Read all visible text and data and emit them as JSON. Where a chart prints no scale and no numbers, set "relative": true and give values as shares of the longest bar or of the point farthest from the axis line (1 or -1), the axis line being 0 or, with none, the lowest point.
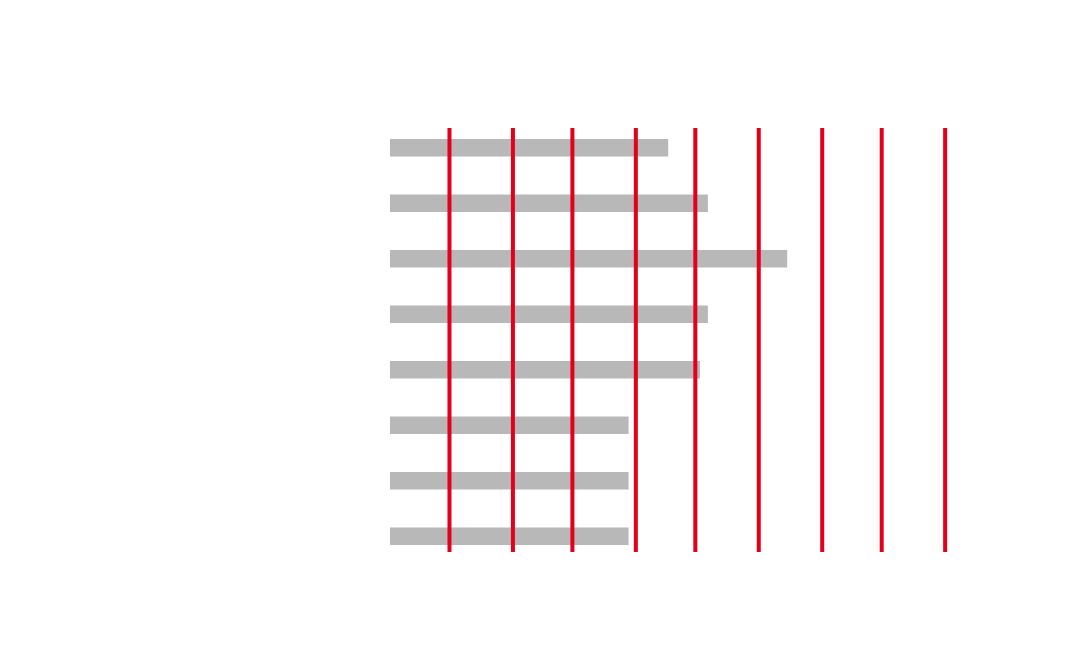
{
  "chart_data": {
    "type": "bar",
    "orientation": "horizontal",
    "relative": true,
    "categories": [
      null,
      null,
      null,
      null,
      null,
      null,
      null,
      null
    ],
    "values": [
      0.7,
      0.8,
      1,
      0.8,
      0.78,
      0.6,
      0.6,
      0.6
    ],
    "color": "#b8b8b8",
    "ref_lines": [
      {
        "axis": "x",
        "value": 0.15,
        "color": "#e2001a"
      },
      {
        "axis": "x",
        "value": 0.31,
        "color": "#e2001a"
      },
      {
        "axis": "x",
        "value": 0.46,
        "color": "#e2001a"
      },
      {
        "axis": "x",
        "value": 0.62,
        "color": "#e2001a"
      },
      {
        "axis": "x",
        "value": 0.77,
        "color": "#e2001a"
      },
      {
        "axis": "x",
        "value": 0.93,
        "color": "#e2001a"
      },
      {
        "axis": "x",
        "value": 1.09,
        "color": "#e2001a"
      },
      {
        "axis": "x",
        "value": 1.24,
        "color": "#e2001a"
      },
      {
        "axis": "x",
        "value": 1.4,
        "color": "#e2001a"
      }
    ]
  }
}
